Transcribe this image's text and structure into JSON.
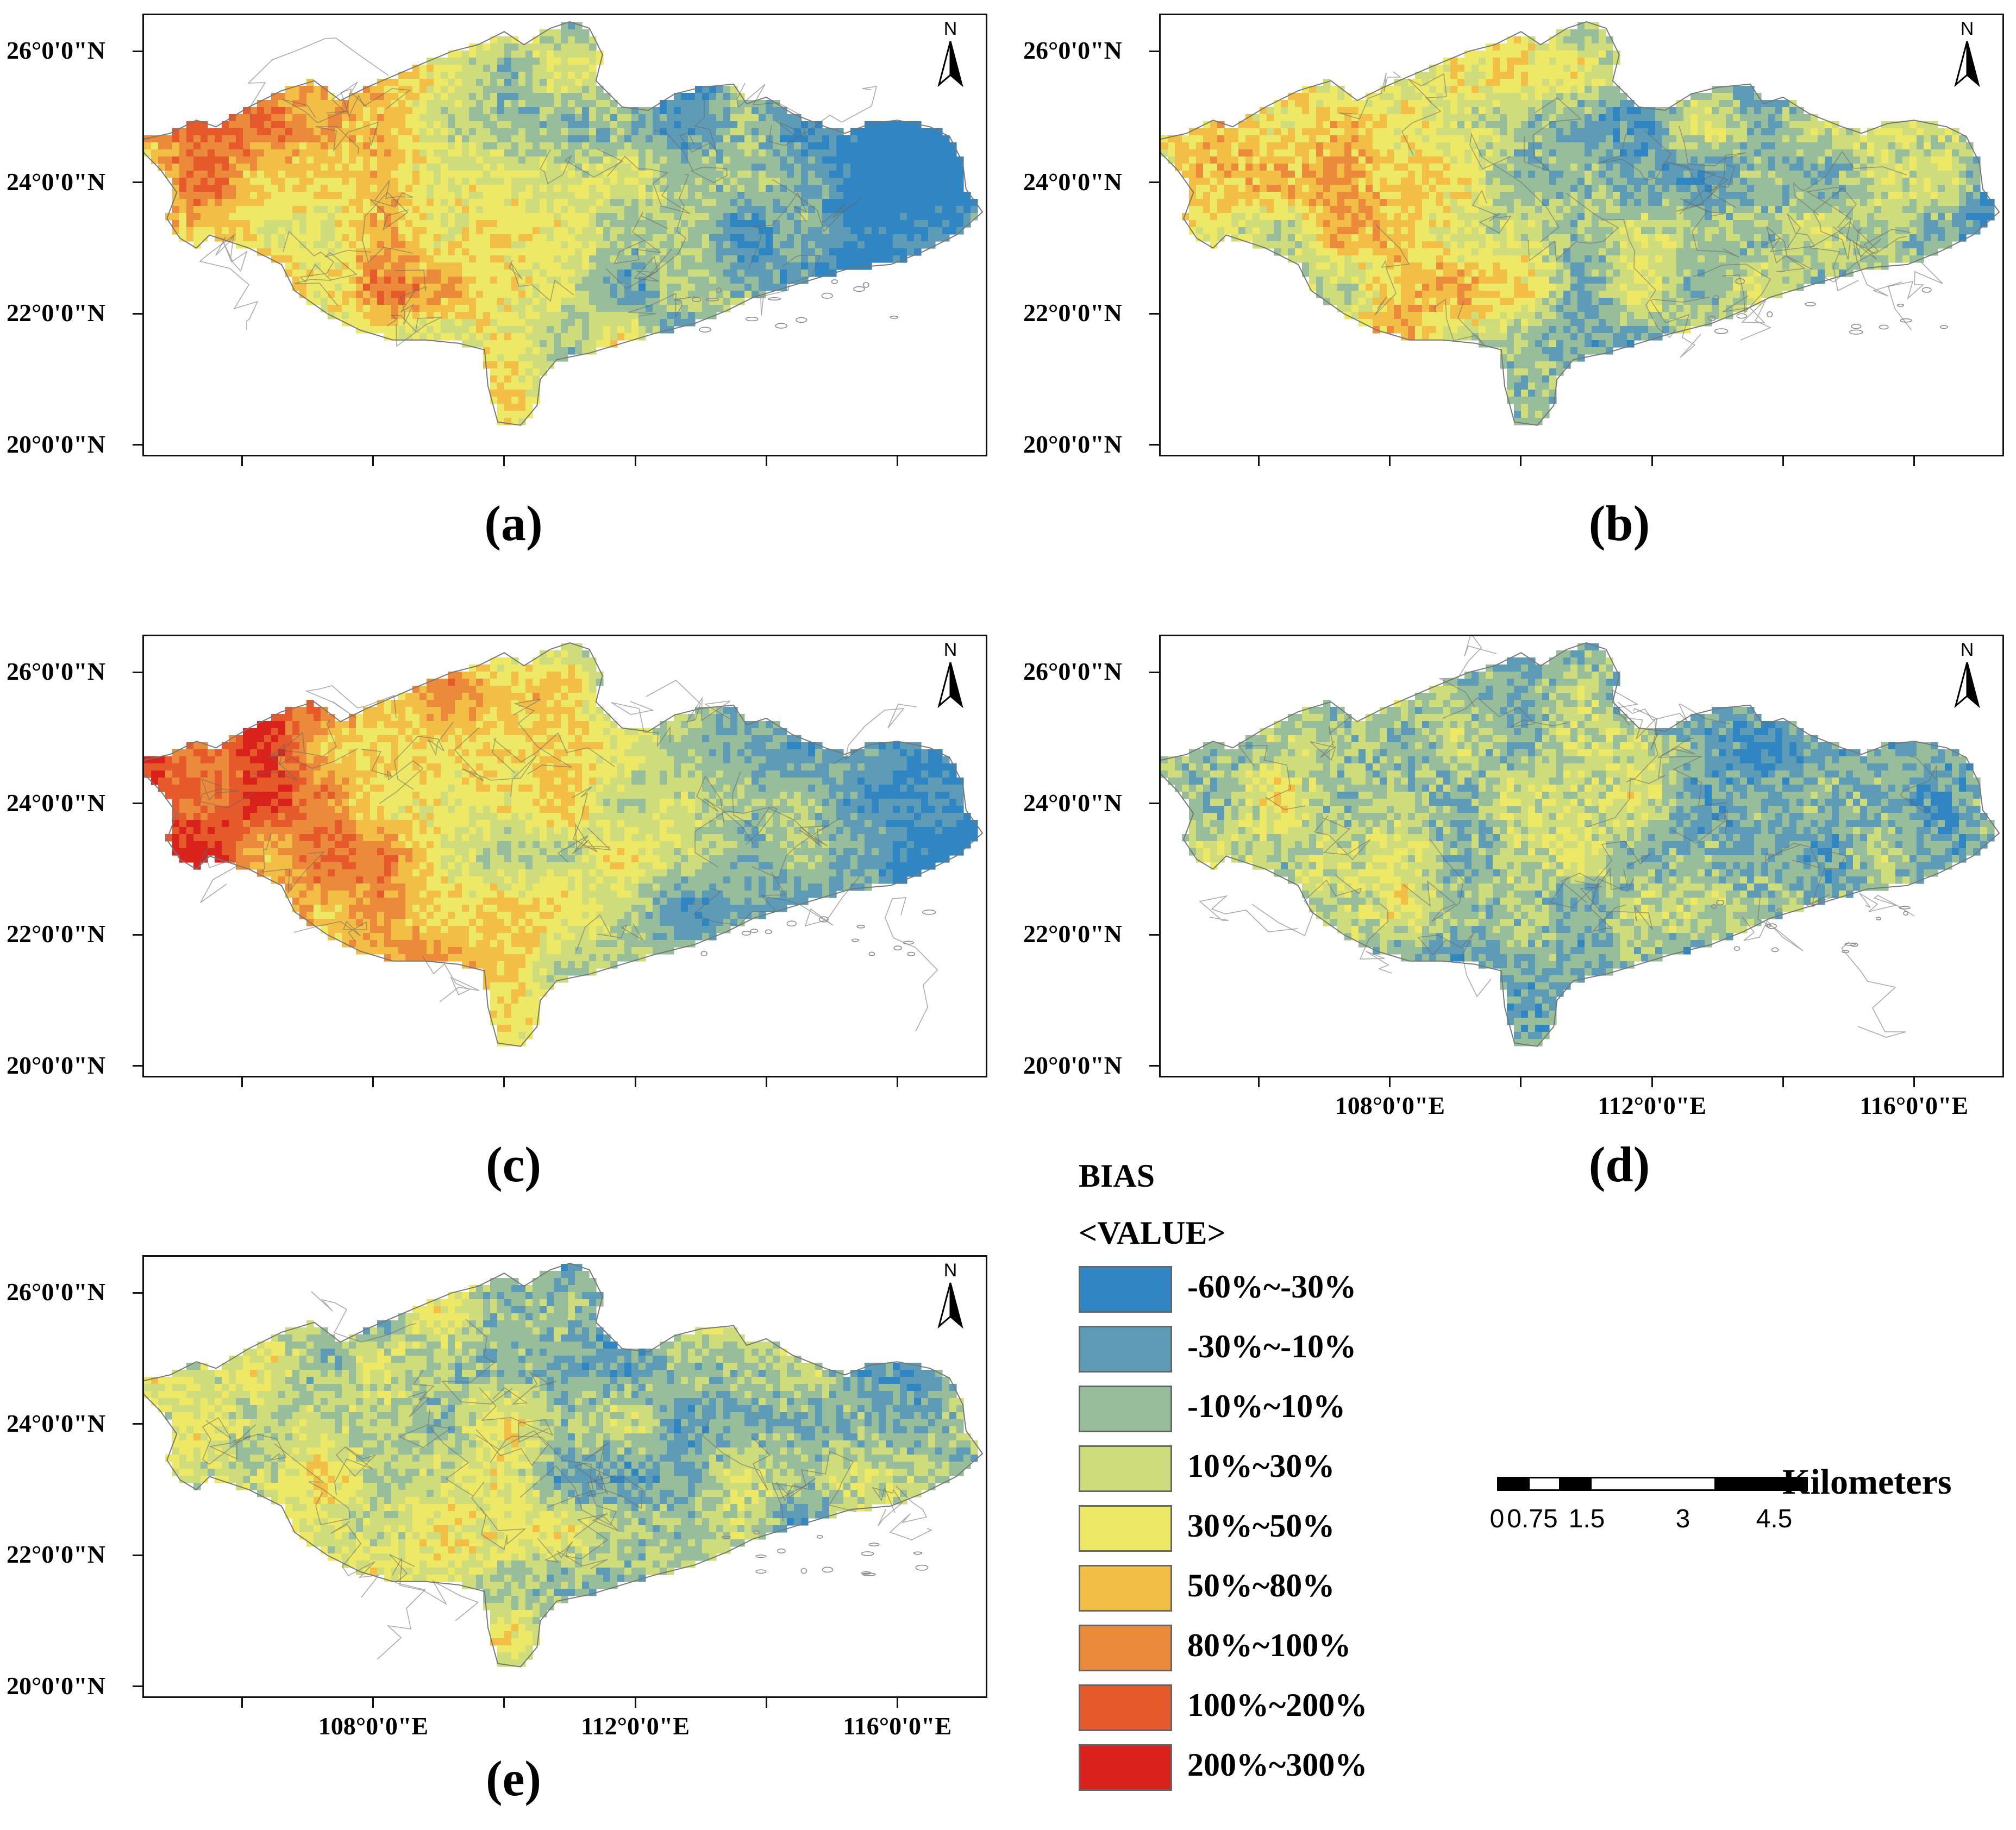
{
  "panels": [
    {
      "id": "a",
      "caption": "(a)",
      "pattern": "west-hot-strong"
    },
    {
      "id": "b",
      "caption": "(b)",
      "pattern": "west-hot-mild"
    },
    {
      "id": "c",
      "caption": "(c)",
      "pattern": "west-hot-extreme"
    },
    {
      "id": "d",
      "caption": "(d)",
      "pattern": "balanced"
    },
    {
      "id": "e",
      "caption": "(e)",
      "pattern": "balanced-warm"
    }
  ],
  "axes": {
    "lat_labels": [
      "26°0'0\"N",
      "24°0'0\"N",
      "22°0'0\"N",
      "20°0'0\"N"
    ],
    "lon_labels": [
      "108°0'0\"E",
      "112°0'0\"E",
      "116°0'0\"E"
    ]
  },
  "north_arrow": {
    "letter": "N"
  },
  "legend": {
    "title": "BIAS",
    "subtitle": "<VALUE>",
    "classes": [
      {
        "label": "-60%~-30%",
        "color": "#2f86c3"
      },
      {
        "label": "-30%~-10%",
        "color": "#5e9bb6"
      },
      {
        "label": "-10%~10%",
        "color": "#98bd9a"
      },
      {
        "label": "10%~30%",
        "color": "#cfdc7c"
      },
      {
        "label": "30%~50%",
        "color": "#eee867"
      },
      {
        "label": "50%~80%",
        "color": "#f2be46"
      },
      {
        "label": "80%~100%",
        "color": "#ec8a3b"
      },
      {
        "label": "100%~200%",
        "color": "#e5592a"
      },
      {
        "label": "200%~300%",
        "color": "#d9221c"
      }
    ]
  },
  "scale_bar": {
    "ticks": [
      "0",
      "0.75",
      "1.5",
      "3",
      "4.5"
    ],
    "unit": "Kilometers"
  }
}
